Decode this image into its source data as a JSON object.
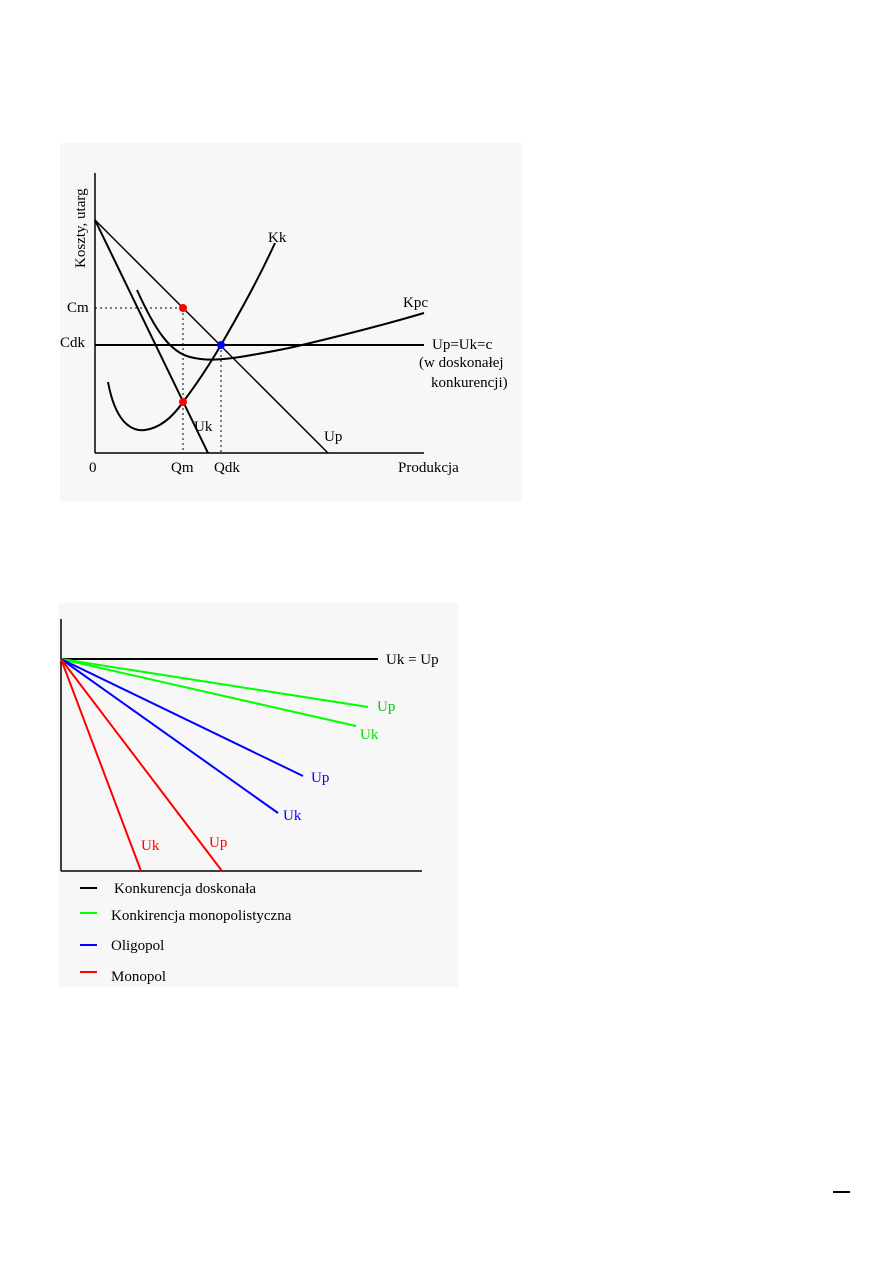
{
  "figure1": {
    "y_axis_label": "Koszty, utarg",
    "x_axis_label": "Produkcja",
    "origin_label": "0",
    "x_ticks": [
      "Qm",
      "Qdk"
    ],
    "y_ticks": [
      "Cm",
      "Cdk"
    ],
    "curve_labels": {
      "kk": "Kk",
      "kpc": "Kpc",
      "up": "Up",
      "uk": "Uk",
      "horizontal_line1": "Up=Uk=c",
      "horizontal_line2": "(w doskonałej",
      "horizontal_line3": "konkurencji)"
    },
    "colors": {
      "monopoly_points": "#ff0000",
      "competition_point": "#0000ff",
      "lines": "#000000"
    }
  },
  "figure2": {
    "curve_labels": {
      "black": "Uk = Up",
      "green_up": "Up",
      "green_uk": "Uk",
      "blue_up": "Up",
      "blue_uk": "Uk",
      "red_uk": "Uk",
      "red_up": "Up"
    },
    "legend": [
      {
        "label": "Konkurencja doskonała",
        "color": "#000000"
      },
      {
        "label": "Konkirencja monopolistyczna",
        "color": "#00ff00"
      },
      {
        "label": "Oligopol",
        "color": "#0000ff"
      },
      {
        "label": "Monopol",
        "color": "#ff0000"
      }
    ]
  },
  "footer": {
    "page_mark": "—"
  }
}
